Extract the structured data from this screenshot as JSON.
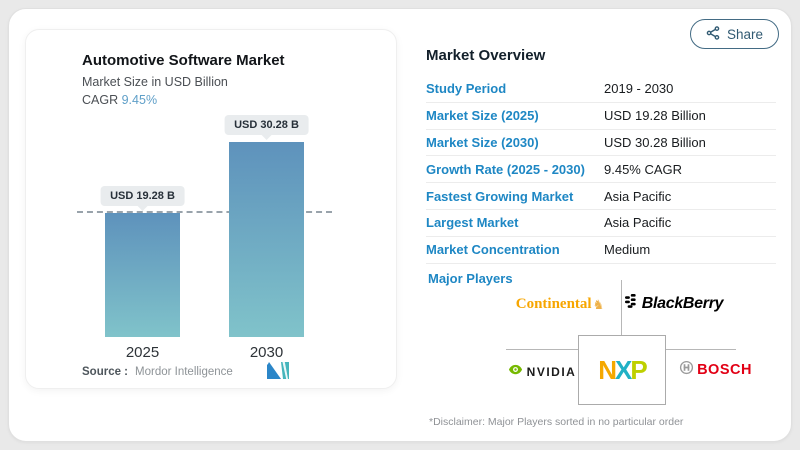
{
  "header": {
    "share_label": "Share"
  },
  "chart_panel": {
    "title": "Automotive Software Market",
    "subtitle": "Market Size in USD Billion",
    "cagr_label": "CAGR",
    "cagr_value": "9.45%",
    "source_label": "Source :",
    "source_value": "Mordor Intelligence"
  },
  "chart_data": {
    "type": "bar",
    "title": "Automotive Software Market",
    "ylabel": "Market Size in USD Billion",
    "categories": [
      "2025",
      "2030"
    ],
    "values": [
      19.28,
      30.28
    ],
    "bar_labels": [
      "USD 19.28 B",
      "USD 30.28 B"
    ],
    "unit": "USD Billion",
    "cagr_pct": 9.45,
    "ylim": [
      0,
      30.28
    ],
    "grid": false,
    "reference_line_y": 19.28,
    "bar_gradient_top": "#5e92bc",
    "bar_gradient_bottom": "#80c3ca"
  },
  "overview": {
    "heading": "Market Overview",
    "rows": [
      {
        "label": "Study Period",
        "value": "2019 - 2030"
      },
      {
        "label": "Market Size (2025)",
        "value": "USD 19.28 Billion"
      },
      {
        "label": "Market Size (2030)",
        "value": "USD 30.28 Billion"
      },
      {
        "label": "Growth Rate (2025 - 2030)",
        "value": "9.45% CAGR"
      },
      {
        "label": "Fastest Growing Market",
        "value": "Asia Pacific"
      },
      {
        "label": "Largest Market",
        "value": "Asia Pacific"
      },
      {
        "label": "Market Concentration",
        "value": "Medium"
      }
    ],
    "major_players_label": "Major Players",
    "major_players": [
      "Continental",
      "BlackBerry",
      "NVIDIA",
      "NXP",
      "BOSCH"
    ],
    "disclaimer": "*Disclaimer: Major Players sorted in no particular order"
  },
  "logos": {
    "nxp_letters": [
      "N",
      "X",
      "P"
    ],
    "continental_horse_glyph": "♞"
  },
  "colors": {
    "accent_blue": "#1e87c4",
    "share_teal": "#436b84",
    "bar_top": "#5e92bc",
    "bar_bottom": "#80c3ca",
    "continental_orange": "#f7a600",
    "nvidia_green": "#76b900",
    "bosch_red": "#e20015",
    "pill_bg": "#e9ecee"
  }
}
